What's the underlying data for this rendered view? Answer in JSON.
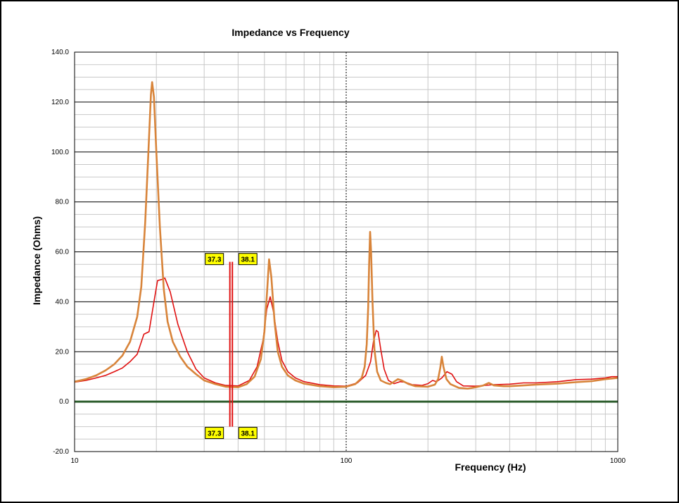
{
  "chart_data": {
    "type": "line",
    "title": "Impedance vs Frequency",
    "xlabel": "Frequency (Hz)",
    "ylabel": "Impedance (Ohms)",
    "x_scale": "log",
    "xlim": [
      10,
      1000
    ],
    "ylim": [
      -20,
      140
    ],
    "x_ticks": [
      "10",
      "100",
      "1000"
    ],
    "y_ticks": [
      "-20.0",
      "0.0",
      "20.0",
      "40.0",
      "60.0",
      "80.0",
      "100.0",
      "120.0",
      "140.0"
    ],
    "grid": true,
    "legend": "none",
    "series": [
      {
        "color": "#e01010",
        "points": [
          [
            10,
            7.8
          ],
          [
            11,
            8.5
          ],
          [
            12,
            9.5
          ],
          [
            13,
            10.5
          ],
          [
            14,
            12
          ],
          [
            15,
            13.5
          ],
          [
            16,
            16
          ],
          [
            17,
            19
          ],
          [
            18,
            27
          ],
          [
            18.8,
            28
          ],
          [
            19.6,
            40
          ],
          [
            20.2,
            48.5
          ],
          [
            21,
            49
          ],
          [
            21.5,
            49.5
          ],
          [
            22.5,
            44
          ],
          [
            24,
            31
          ],
          [
            26,
            20
          ],
          [
            28,
            13
          ],
          [
            30,
            9.5
          ],
          [
            33,
            7.5
          ],
          [
            36,
            6.5
          ],
          [
            40,
            6.3
          ],
          [
            44,
            8.5
          ],
          [
            47,
            14
          ],
          [
            49.5,
            25
          ],
          [
            51,
            37
          ],
          [
            52.5,
            42
          ],
          [
            54,
            36
          ],
          [
            56,
            24
          ],
          [
            58,
            16.5
          ],
          [
            61,
            12
          ],
          [
            65,
            9.5
          ],
          [
            70,
            8
          ],
          [
            80,
            6.8
          ],
          [
            90,
            6.3
          ],
          [
            100,
            6.2
          ],
          [
            110,
            7.5
          ],
          [
            118,
            10.5
          ],
          [
            123,
            16
          ],
          [
            126,
            24
          ],
          [
            129,
            28.5
          ],
          [
            131,
            28
          ],
          [
            134,
            21
          ],
          [
            138,
            13
          ],
          [
            143,
            8.5
          ],
          [
            150,
            7.2
          ],
          [
            158,
            8
          ],
          [
            165,
            7.8
          ],
          [
            175,
            6.8
          ],
          [
            190,
            6.5
          ],
          [
            200,
            7.2
          ],
          [
            208,
            8.5
          ],
          [
            215,
            8
          ],
          [
            225,
            9.5
          ],
          [
            235,
            12
          ],
          [
            245,
            11
          ],
          [
            255,
            8
          ],
          [
            270,
            6.3
          ],
          [
            300,
            6.2
          ],
          [
            350,
            6.8
          ],
          [
            400,
            7
          ],
          [
            450,
            7.5
          ],
          [
            500,
            7.5
          ],
          [
            600,
            8
          ],
          [
            700,
            8.8
          ],
          [
            800,
            9
          ],
          [
            900,
            9.5
          ],
          [
            950,
            10
          ],
          [
            1000,
            10
          ]
        ]
      },
      {
        "color": "#d8843a",
        "points": [
          [
            10,
            8
          ],
          [
            11,
            9
          ],
          [
            12,
            10.5
          ],
          [
            13,
            12.5
          ],
          [
            14,
            15
          ],
          [
            15,
            18.5
          ],
          [
            16,
            24
          ],
          [
            17,
            34
          ],
          [
            17.6,
            46
          ],
          [
            18.2,
            72
          ],
          [
            18.7,
            100
          ],
          [
            19.1,
            123
          ],
          [
            19.3,
            128
          ],
          [
            19.6,
            122
          ],
          [
            20,
            100
          ],
          [
            20.6,
            70
          ],
          [
            21.3,
            45
          ],
          [
            22,
            32
          ],
          [
            23,
            24
          ],
          [
            24.5,
            18
          ],
          [
            26,
            14
          ],
          [
            28,
            11
          ],
          [
            30,
            8.5
          ],
          [
            33,
            7
          ],
          [
            36,
            6
          ],
          [
            40,
            5.8
          ],
          [
            43,
            7
          ],
          [
            46,
            10
          ],
          [
            48.5,
            17
          ],
          [
            50,
            28
          ],
          [
            51.2,
            45
          ],
          [
            52,
            57
          ],
          [
            53,
            50
          ],
          [
            54.5,
            32
          ],
          [
            56,
            20
          ],
          [
            58,
            14
          ],
          [
            61,
            10.5
          ],
          [
            65,
            8.5
          ],
          [
            70,
            7.2
          ],
          [
            80,
            6.2
          ],
          [
            90,
            5.8
          ],
          [
            100,
            6
          ],
          [
            108,
            7
          ],
          [
            114,
            9.5
          ],
          [
            117,
            14
          ],
          [
            119,
            23
          ],
          [
            120.5,
            38
          ],
          [
            121.5,
            55
          ],
          [
            122.5,
            68
          ],
          [
            123.5,
            60
          ],
          [
            125,
            40
          ],
          [
            127,
            21
          ],
          [
            130,
            12
          ],
          [
            134,
            8.5
          ],
          [
            140,
            7.5
          ],
          [
            145,
            7
          ],
          [
            150,
            8
          ],
          [
            155,
            9
          ],
          [
            160,
            8.5
          ],
          [
            170,
            7
          ],
          [
            180,
            6.2
          ],
          [
            200,
            6
          ],
          [
            212,
            6.8
          ],
          [
            218,
            9
          ],
          [
            222,
            13.5
          ],
          [
            225,
            18
          ],
          [
            228,
            14
          ],
          [
            234,
            9
          ],
          [
            242,
            7
          ],
          [
            260,
            5.5
          ],
          [
            280,
            5.2
          ],
          [
            300,
            5.8
          ],
          [
            320,
            6.5
          ],
          [
            335,
            7.5
          ],
          [
            350,
            6.5
          ],
          [
            380,
            6.2
          ],
          [
            400,
            6.2
          ],
          [
            450,
            6.5
          ],
          [
            500,
            6.8
          ],
          [
            600,
            7.2
          ],
          [
            700,
            7.8
          ],
          [
            800,
            8.2
          ],
          [
            900,
            9
          ],
          [
            1000,
            9.5
          ]
        ]
      }
    ],
    "markers": [
      {
        "value": "37.3",
        "text_top": "37.3",
        "text_bottom": "37.3",
        "x": 37.3,
        "y_top": 56,
        "y_bottom": -10
      },
      {
        "value": "38.1",
        "text_top": "38.1",
        "text_bottom": "38.1",
        "x": 38.1,
        "y_top": 56,
        "y_bottom": -10
      }
    ],
    "marker_color": "#e01010",
    "zero_line_color": "#2e5e2e",
    "marker_box_fill": "#ffff00"
  }
}
